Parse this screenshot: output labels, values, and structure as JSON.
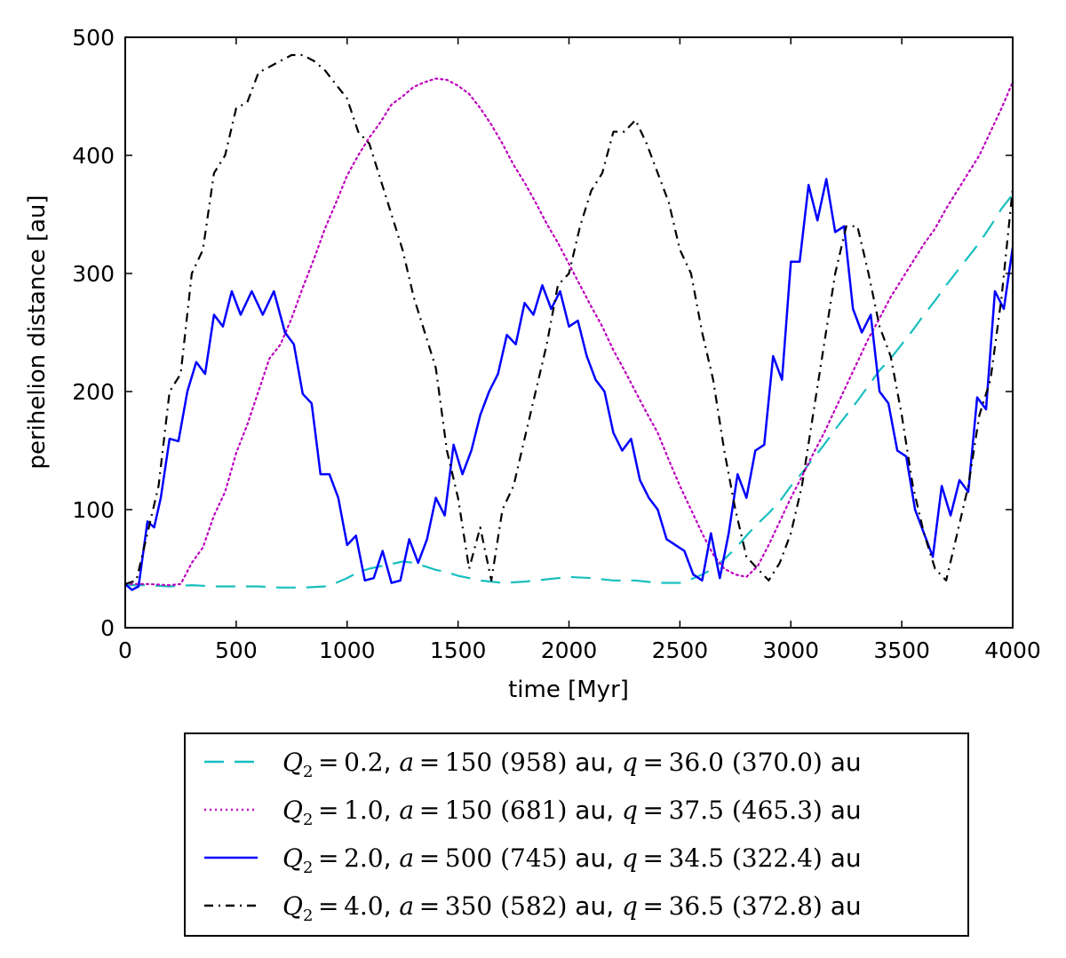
{
  "chart_data": {
    "type": "line",
    "title": "",
    "xlabel": "time [Myr]",
    "ylabel": "perihelion distance [au]",
    "xlim": [
      0,
      4000
    ],
    "ylim": [
      0,
      500
    ],
    "xticks": [
      0,
      500,
      1000,
      1500,
      2000,
      2500,
      3000,
      3500,
      4000
    ],
    "yticks": [
      0,
      100,
      200,
      300,
      400,
      500
    ],
    "legend_position": "below plot",
    "series": [
      {
        "name": "Q2=0.2, a=150 (958) au, q=36.0 (370.0) au",
        "legend": {
          "Q": "0.2",
          "a": "150",
          "a_f": "958",
          "q": "36.0",
          "q_f": "370.0"
        },
        "color": "#17bfbf",
        "style": "dashed",
        "x": [
          0,
          100,
          200,
          300,
          400,
          500,
          600,
          700,
          800,
          900,
          950,
          1000,
          1050,
          1100,
          1150,
          1200,
          1250,
          1300,
          1350,
          1400,
          1450,
          1500,
          1550,
          1600,
          1650,
          1700,
          1800,
          1900,
          2000,
          2100,
          2200,
          2300,
          2400,
          2500,
          2550,
          2600,
          2650,
          2700,
          2750,
          2800,
          2850,
          2900,
          2950,
          3000,
          3050,
          3100,
          3150,
          3200,
          3250,
          3300,
          3350,
          3400,
          3450,
          3500,
          3550,
          3600,
          3650,
          3700,
          3750,
          3800,
          3850,
          3900,
          3950,
          4000
        ],
        "y": [
          36,
          36,
          35,
          36,
          35,
          35,
          35,
          34,
          34,
          35,
          38,
          42,
          47,
          50,
          52,
          54,
          56,
          55,
          52,
          49,
          47,
          44,
          42,
          40,
          39,
          38,
          39,
          41,
          43,
          42,
          40,
          40,
          38,
          38,
          41,
          45,
          50,
          58,
          67,
          78,
          88,
          97,
          107,
          120,
          131,
          143,
          155,
          168,
          180,
          192,
          205,
          218,
          228,
          240,
          252,
          265,
          277,
          290,
          302,
          314,
          326,
          340,
          355,
          367
        ]
      },
      {
        "name": "Q2=1.0, a=150 (681) au, q=37.5 (465.3) au",
        "legend": {
          "Q": "1.0",
          "a": "150",
          "a_f": "681",
          "q": "37.5",
          "q_f": "465.3"
        },
        "color": "#bf00bf",
        "style": "dotted",
        "x": [
          0,
          100,
          200,
          250,
          300,
          350,
          400,
          450,
          500,
          550,
          600,
          650,
          700,
          750,
          800,
          850,
          900,
          950,
          1000,
          1050,
          1100,
          1150,
          1200,
          1250,
          1300,
          1350,
          1400,
          1450,
          1500,
          1550,
          1600,
          1650,
          1700,
          1750,
          1800,
          1850,
          1900,
          1950,
          2000,
          2050,
          2100,
          2150,
          2200,
          2250,
          2300,
          2350,
          2400,
          2450,
          2500,
          2550,
          2600,
          2650,
          2700,
          2750,
          2800,
          2850,
          2900,
          2950,
          3000,
          3050,
          3100,
          3150,
          3200,
          3250,
          3300,
          3350,
          3400,
          3450,
          3500,
          3550,
          3600,
          3650,
          3700,
          3750,
          3800,
          3850,
          3900,
          3950,
          4000
        ],
        "y": [
          37,
          37,
          36,
          37,
          55,
          68,
          95,
          115,
          148,
          172,
          200,
          228,
          240,
          262,
          288,
          312,
          338,
          360,
          383,
          400,
          415,
          428,
          443,
          450,
          458,
          462,
          465,
          464,
          459,
          452,
          440,
          426,
          410,
          392,
          377,
          360,
          342,
          326,
          308,
          290,
          272,
          255,
          235,
          218,
          200,
          182,
          165,
          142,
          120,
          100,
          80,
          62,
          50,
          45,
          43,
          52,
          70,
          90,
          110,
          128,
          147,
          165,
          185,
          205,
          225,
          245,
          262,
          280,
          295,
          310,
          325,
          338,
          355,
          370,
          385,
          400,
          420,
          440,
          462
        ]
      },
      {
        "name": "Q2=2.0, a=500 (745) au, q=34.5 (322.4) au",
        "legend": {
          "Q": "2.0",
          "a": "500",
          "a_f": "745",
          "q": "34.5",
          "q_f": "322.4"
        },
        "color": "#0000ff",
        "style": "solid",
        "x": [
          0,
          30,
          60,
          100,
          130,
          160,
          200,
          240,
          280,
          320,
          360,
          400,
          440,
          480,
          520,
          570,
          620,
          670,
          720,
          760,
          800,
          840,
          880,
          920,
          960,
          1000,
          1040,
          1080,
          1120,
          1160,
          1200,
          1240,
          1280,
          1320,
          1360,
          1400,
          1440,
          1480,
          1520,
          1560,
          1600,
          1640,
          1680,
          1720,
          1760,
          1800,
          1840,
          1880,
          1920,
          1960,
          2000,
          2040,
          2080,
          2120,
          2160,
          2200,
          2240,
          2280,
          2320,
          2360,
          2400,
          2440,
          2480,
          2520,
          2560,
          2600,
          2640,
          2680,
          2720,
          2760,
          2800,
          2840,
          2880,
          2920,
          2960,
          3000,
          3040,
          3080,
          3120,
          3160,
          3200,
          3240,
          3280,
          3320,
          3360,
          3400,
          3440,
          3480,
          3520,
          3560,
          3600,
          3640,
          3680,
          3720,
          3760,
          3800,
          3840,
          3880,
          3920,
          3960,
          4000
        ],
        "y": [
          37,
          32,
          35,
          90,
          85,
          110,
          160,
          158,
          200,
          225,
          215,
          265,
          255,
          285,
          265,
          285,
          265,
          285,
          250,
          240,
          198,
          190,
          130,
          130,
          110,
          70,
          78,
          40,
          42,
          65,
          38,
          40,
          75,
          55,
          75,
          110,
          95,
          155,
          130,
          150,
          180,
          200,
          215,
          248,
          240,
          275,
          265,
          290,
          270,
          285,
          255,
          260,
          230,
          210,
          200,
          165,
          150,
          160,
          125,
          110,
          100,
          75,
          70,
          65,
          45,
          40,
          80,
          42,
          80,
          130,
          110,
          150,
          155,
          230,
          210,
          310,
          310,
          375,
          345,
          380,
          335,
          340,
          270,
          250,
          265,
          200,
          190,
          150,
          145,
          100,
          80,
          60,
          120,
          95,
          125,
          115,
          195,
          185,
          285,
          270,
          322
        ]
      },
      {
        "name": "Q2=4.0, a=350 (582) au, q=36.5 (372.8) au",
        "legend": {
          "Q": "4.0",
          "a": "350",
          "a_f": "582",
          "q": "36.5",
          "q_f": "372.8"
        },
        "color": "#000000",
        "style": "dashdot",
        "x": [
          0,
          50,
          100,
          150,
          200,
          250,
          300,
          350,
          400,
          450,
          500,
          550,
          600,
          650,
          700,
          750,
          800,
          850,
          900,
          950,
          1000,
          1050,
          1100,
          1150,
          1200,
          1250,
          1300,
          1350,
          1400,
          1450,
          1500,
          1550,
          1600,
          1650,
          1700,
          1750,
          1800,
          1850,
          1900,
          1950,
          2000,
          2050,
          2100,
          2150,
          2200,
          2250,
          2300,
          2350,
          2400,
          2450,
          2500,
          2550,
          2600,
          2650,
          2700,
          2750,
          2800,
          2850,
          2900,
          2950,
          3000,
          3050,
          3100,
          3150,
          3200,
          3250,
          3300,
          3350,
          3400,
          3450,
          3500,
          3550,
          3600,
          3650,
          3700,
          3750,
          3800,
          3850,
          3900,
          3950,
          4000
        ],
        "y": [
          37,
          40,
          80,
          120,
          200,
          215,
          300,
          320,
          385,
          400,
          440,
          445,
          470,
          475,
          480,
          485,
          485,
          480,
          472,
          460,
          448,
          420,
          410,
          380,
          350,
          320,
          280,
          250,
          220,
          150,
          110,
          50,
          85,
          40,
          100,
          120,
          160,
          200,
          240,
          290,
          300,
          340,
          370,
          385,
          420,
          420,
          430,
          410,
          385,
          360,
          320,
          300,
          250,
          210,
          150,
          100,
          60,
          50,
          40,
          55,
          80,
          120,
          180,
          240,
          300,
          340,
          340,
          300,
          255,
          230,
          180,
          120,
          80,
          50,
          40,
          80,
          120,
          180,
          210,
          280,
          372
        ]
      }
    ]
  }
}
